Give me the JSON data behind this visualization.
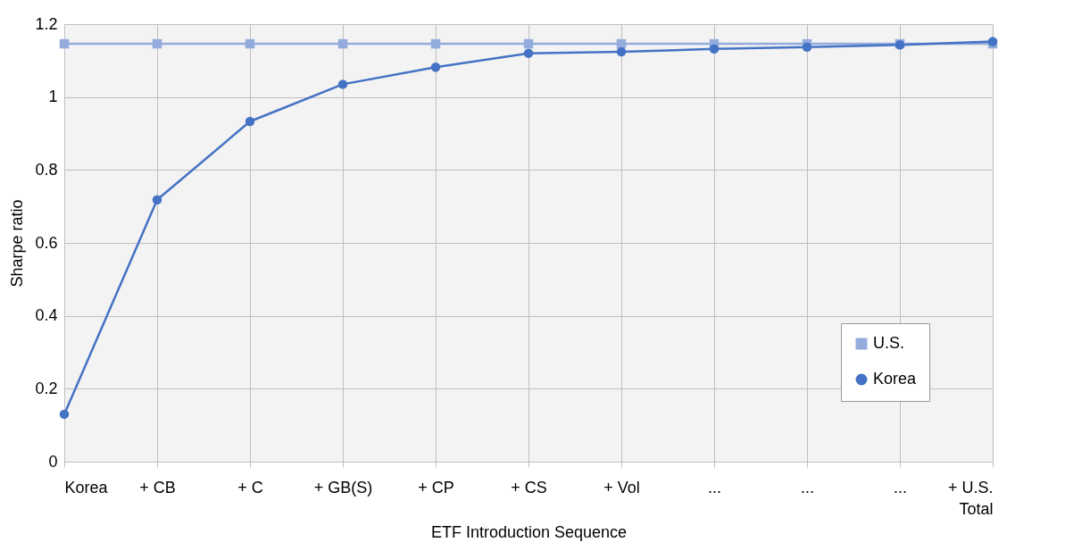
{
  "chart_data": {
    "type": "line",
    "xlabel": "ETF Introduction  Sequence",
    "ylabel": "Sharpe ratio",
    "categories": [
      "Korea",
      "+ CB",
      "+ C",
      "+ GB(S)",
      "+ CP",
      "+ CS",
      "+ Vol",
      "...",
      "...",
      "...",
      "+ U.S.\nTotal"
    ],
    "series": [
      {
        "name": "U.S.",
        "color": "#94acdc",
        "marker": "square",
        "values": [
          1.146,
          1.146,
          1.146,
          1.146,
          1.146,
          1.146,
          1.146,
          1.146,
          1.146,
          1.146,
          1.146
        ]
      },
      {
        "name": "Korea",
        "color": "#4472c4",
        "marker": "circle",
        "values": [
          0.13,
          0.718,
          0.933,
          1.035,
          1.082,
          1.12,
          1.124,
          1.132,
          1.137,
          1.143,
          1.152
        ]
      }
    ],
    "ylim": [
      0,
      1.2
    ],
    "yticks": [
      0,
      0.2,
      0.4,
      0.6,
      0.8,
      1,
      1.2
    ],
    "grid": true,
    "legend": "right",
    "line_style": "solid"
  }
}
